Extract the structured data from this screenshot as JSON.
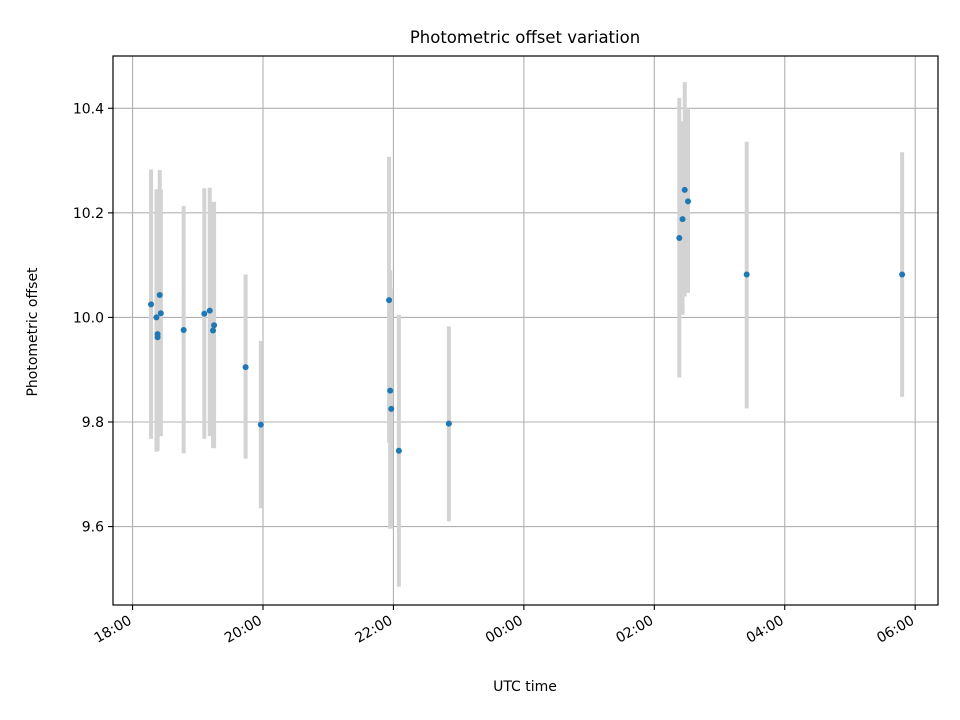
{
  "chart_data": {
    "type": "scatter",
    "title": "Photometric offset variation",
    "xlabel": "UTC time",
    "ylabel": "Photometric offset",
    "x_axis_kind": "time",
    "x_range": [
      "18:00",
      "06:00"
    ],
    "xlim_hours": [
      17.7,
      30.35
    ],
    "ylim": [
      9.45,
      10.5
    ],
    "x_ticks": [
      "18:00",
      "20:00",
      "22:00",
      "00:00",
      "02:00",
      "04:00",
      "06:00"
    ],
    "y_ticks": [
      "9.6",
      "9.8",
      "10.0",
      "10.2",
      "10.4"
    ],
    "grid": true,
    "marker_color": "#1f77b4",
    "errorbar_color": "#d3d3d3",
    "series": [
      {
        "points": [
          {
            "t": "18:17",
            "y": 10.025,
            "err_low": 9.768,
            "err_high": 10.283
          },
          {
            "t": "18:22",
            "y": 10.0,
            "err_low": 9.743,
            "err_high": 10.245
          },
          {
            "t": "18:23",
            "y": 9.968,
            "err_low": 9.745,
            "err_high": 10.245
          },
          {
            "t": "18:23",
            "y": 9.962,
            "err_low": 9.745,
            "err_high": 10.245
          },
          {
            "t": "18:25",
            "y": 10.043,
            "err_low": 9.773,
            "err_high": 10.282
          },
          {
            "t": "18:26",
            "y": 10.008,
            "err_low": 9.773,
            "err_high": 10.245
          },
          {
            "t": "18:47",
            "y": 9.976,
            "err_low": 9.74,
            "err_high": 10.213
          },
          {
            "t": "19:06",
            "y": 10.007,
            "err_low": 9.768,
            "err_high": 10.247
          },
          {
            "t": "19:11",
            "y": 10.013,
            "err_low": 9.773,
            "err_high": 10.248
          },
          {
            "t": "19:14",
            "y": 9.975,
            "err_low": 9.75,
            "err_high": 10.221
          },
          {
            "t": "19:15",
            "y": 9.985,
            "err_low": 9.75,
            "err_high": 10.221
          },
          {
            "t": "19:44",
            "y": 9.905,
            "err_low": 9.73,
            "err_high": 10.082
          },
          {
            "t": "19:58",
            "y": 9.795,
            "err_low": 9.635,
            "err_high": 9.955
          },
          {
            "t": "21:56",
            "y": 10.033,
            "err_low": 9.76,
            "err_high": 10.307
          },
          {
            "t": "21:57",
            "y": 9.86,
            "err_low": 9.596,
            "err_high": 10.09
          },
          {
            "t": "21:58",
            "y": 9.825,
            "err_low": 9.596,
            "err_high": 10.055
          },
          {
            "t": "22:05",
            "y": 9.745,
            "err_low": 9.485,
            "err_high": 10.005
          },
          {
            "t": "22:51",
            "y": 9.797,
            "err_low": 9.61,
            "err_high": 9.983
          },
          {
            "t": "02:23",
            "y": 10.152,
            "err_low": 9.885,
            "err_high": 10.42
          },
          {
            "t": "02:26",
            "y": 10.188,
            "err_low": 10.005,
            "err_high": 10.375
          },
          {
            "t": "02:28",
            "y": 10.244,
            "err_low": 10.04,
            "err_high": 10.45
          },
          {
            "t": "02:31",
            "y": 10.222,
            "err_low": 10.047,
            "err_high": 10.4
          },
          {
            "t": "03:25",
            "y": 10.082,
            "err_low": 9.826,
            "err_high": 10.336
          },
          {
            "t": "05:48",
            "y": 10.082,
            "err_low": 9.848,
            "err_high": 10.316
          }
        ]
      }
    ]
  }
}
